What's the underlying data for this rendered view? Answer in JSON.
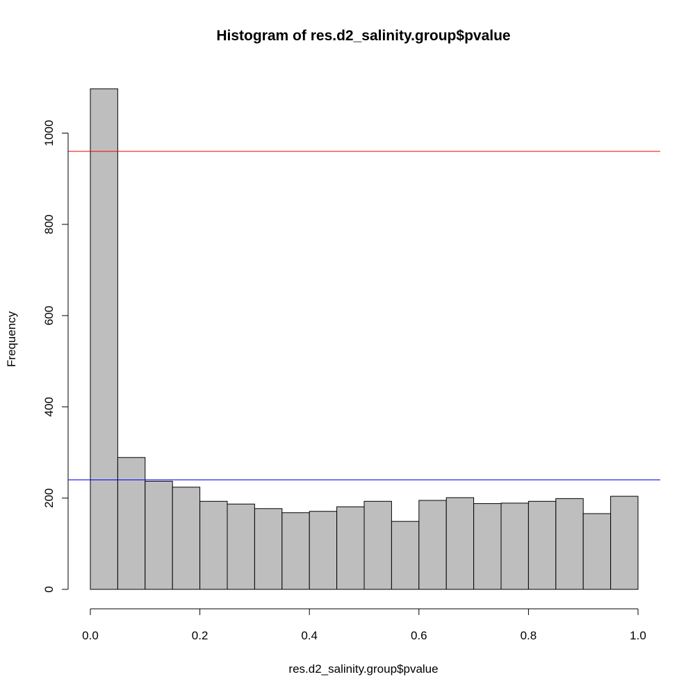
{
  "chart_data": {
    "type": "bar",
    "title": "Histogram of res.d2_salinity.group$pvalue",
    "xlabel": "res.d2_salinity.group$pvalue",
    "ylabel": "Frequency",
    "xlim": [
      0,
      1
    ],
    "ylim": [
      0,
      1100
    ],
    "bin_width": 0.05,
    "bin_starts": [
      0.0,
      0.05,
      0.1,
      0.15,
      0.2,
      0.25,
      0.3,
      0.35,
      0.4,
      0.45,
      0.5,
      0.55,
      0.6,
      0.65,
      0.7,
      0.75,
      0.8,
      0.85,
      0.9,
      0.95
    ],
    "values": [
      1097,
      289,
      237,
      224,
      193,
      187,
      177,
      168,
      171,
      181,
      193,
      149,
      195,
      201,
      188,
      189,
      193,
      199,
      166,
      204
    ],
    "x_ticks": [
      {
        "value": 0.0,
        "label": "0.0"
      },
      {
        "value": 0.2,
        "label": "0.2"
      },
      {
        "value": 0.4,
        "label": "0.4"
      },
      {
        "value": 0.6,
        "label": "0.6"
      },
      {
        "value": 0.8,
        "label": "0.8"
      },
      {
        "value": 1.0,
        "label": "1.0"
      }
    ],
    "y_ticks": [
      {
        "value": 0,
        "label": "0"
      },
      {
        "value": 200,
        "label": "200"
      },
      {
        "value": 400,
        "label": "400"
      },
      {
        "value": 600,
        "label": "600"
      },
      {
        "value": 800,
        "label": "800"
      },
      {
        "value": 1000,
        "label": "1000"
      }
    ],
    "reference_lines": [
      {
        "orientation": "horizontal",
        "y": 960,
        "color": "#ff0000"
      },
      {
        "orientation": "horizontal",
        "y": 240,
        "color": "#0000ff"
      }
    ],
    "bar_fill": "#bebebe",
    "grid": false,
    "legend": "none"
  }
}
